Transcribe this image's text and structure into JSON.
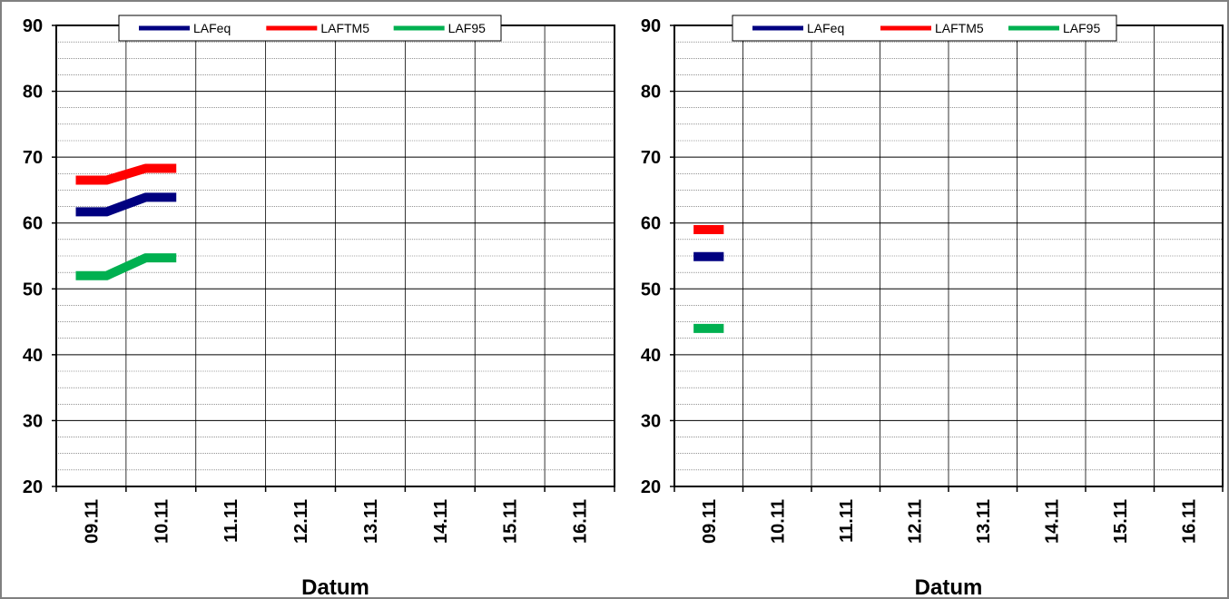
{
  "chart_data": [
    {
      "type": "line",
      "xlabel": "Datum",
      "ylabel": "",
      "ylim": [
        20,
        90
      ],
      "y_major_ticks": [
        20,
        30,
        40,
        50,
        60,
        70,
        80,
        90
      ],
      "categories": [
        "09.11",
        "10.11",
        "11.11",
        "12.11",
        "13.11",
        "14.11",
        "15.11",
        "16.11"
      ],
      "grid": true,
      "legend_position": "top",
      "series": [
        {
          "name": "LAFeq",
          "color": "#000080",
          "values": [
            61.7,
            63.9,
            null,
            null,
            null,
            null,
            null,
            null
          ]
        },
        {
          "name": "LAFTM5",
          "color": "#ff0000",
          "values": [
            66.5,
            68.3,
            null,
            null,
            null,
            null,
            null,
            null
          ]
        },
        {
          "name": "LAF95",
          "color": "#00b050",
          "values": [
            52.0,
            54.7,
            null,
            null,
            null,
            null,
            null,
            null
          ]
        }
      ]
    },
    {
      "type": "line",
      "xlabel": "Datum",
      "ylabel": "",
      "ylim": [
        20,
        90
      ],
      "y_major_ticks": [
        20,
        30,
        40,
        50,
        60,
        70,
        80,
        90
      ],
      "categories": [
        "09.11",
        "10.11",
        "11.11",
        "12.11",
        "13.11",
        "14.11",
        "15.11",
        "16.11"
      ],
      "grid": true,
      "legend_position": "top",
      "series": [
        {
          "name": "LAFeq",
          "color": "#000080",
          "values": [
            54.9,
            null,
            null,
            null,
            null,
            null,
            null,
            null
          ]
        },
        {
          "name": "LAFTM5",
          "color": "#ff0000",
          "values": [
            59.0,
            null,
            null,
            null,
            null,
            null,
            null,
            null
          ]
        },
        {
          "name": "LAF95",
          "color": "#00b050",
          "values": [
            44.0,
            null,
            null,
            null,
            null,
            null,
            null,
            null
          ]
        }
      ]
    }
  ]
}
